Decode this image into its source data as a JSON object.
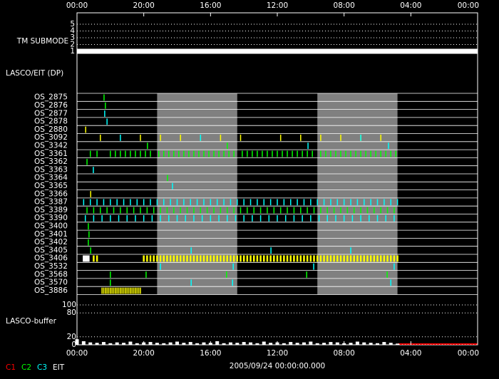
{
  "chart_data": {
    "type": "timeline",
    "title": "2005/09/24 00:00:00.000",
    "xlim": [
      0,
      120
    ],
    "xticks": [
      {
        "value": 0,
        "label": "00:00"
      },
      {
        "value": 20,
        "label": "20:00"
      },
      {
        "value": 40,
        "label": "16:00"
      },
      {
        "value": 60,
        "label": "12:00"
      },
      {
        "value": 80,
        "label": "08:00"
      },
      {
        "value": 100,
        "label": "04:00"
      },
      {
        "value": 120,
        "label": "00:00"
      }
    ],
    "tm_submode": {
      "label": "TM SUBMODE",
      "ylim": [
        1,
        5
      ],
      "yticks": [
        1,
        2,
        3,
        4,
        5
      ],
      "x": [
        0,
        120
      ],
      "values": [
        1,
        1
      ],
      "color": "#ffffff"
    },
    "panel_label": "LASCO/EIT (DP)",
    "shaded": [
      [
        24,
        48
      ],
      [
        72,
        96
      ]
    ],
    "rows": [
      {
        "name": "OS_2875",
        "marks": [
          {
            "color": "#00ff00",
            "x": [
              8.1
            ]
          }
        ]
      },
      {
        "name": "OS_2876",
        "marks": [
          {
            "color": "#00ff00",
            "x": [
              8.5
            ]
          }
        ]
      },
      {
        "name": "OS_2877",
        "marks": [
          {
            "color": "#00ffff",
            "x": [
              8.3
            ]
          }
        ]
      },
      {
        "name": "OS_2878",
        "marks": [
          {
            "color": "#00ffff",
            "x": [
              9
            ]
          }
        ]
      },
      {
        "name": "OS_2880",
        "marks": [
          {
            "color": "#ffff00",
            "x": [
              2.6
            ]
          }
        ]
      },
      {
        "name": "OS_3092",
        "marks": [
          {
            "color": "#ffff00",
            "x": [
              7,
              19,
              25,
              31,
              37,
              43,
              49,
              61,
              67,
              73,
              79,
              85,
              91
            ]
          },
          {
            "color": "#00ffff",
            "x": [
              13,
              37,
              85
            ]
          }
        ]
      },
      {
        "name": "OS_3342",
        "marks": [
          {
            "color": "#00ff00",
            "x": [
              21.1,
              45
            ]
          },
          {
            "color": "#00ffff",
            "x": [
              69.2,
              93.3
            ]
          }
        ]
      },
      {
        "name": "OS_3361",
        "marks": [
          {
            "color": "#00ff00",
            "x": [
              4,
              6,
              10,
              11.5,
              13,
              14.5,
              16,
              17.5,
              19,
              20.5,
              22,
              24.5,
              26,
              27.5,
              29,
              30.5,
              32,
              33.5,
              35,
              36.5,
              38,
              39.5,
              41,
              42.5,
              44,
              45.5,
              47,
              49.5,
              51,
              52.5,
              54,
              55.5,
              57,
              58.5,
              60,
              61.5,
              63,
              64.5,
              66,
              67.5,
              69,
              70.5,
              73,
              74.5,
              76,
              77.5,
              79,
              80.5,
              82,
              83.5,
              85,
              86.5,
              88,
              89.5,
              91,
              92.5,
              94,
              95.5
            ]
          }
        ]
      },
      {
        "name": "OS_3362",
        "marks": [
          {
            "color": "#00ff00",
            "x": [
              3
            ]
          }
        ]
      },
      {
        "name": "OS_3363",
        "marks": [
          {
            "color": "#00ffff",
            "x": [
              4.9
            ]
          }
        ]
      },
      {
        "name": "OS_3364",
        "marks": [
          {
            "color": "#00ff00",
            "x": [
              27.1
            ]
          }
        ]
      },
      {
        "name": "OS_3365",
        "marks": [
          {
            "color": "#00ffff",
            "x": [
              28.6
            ]
          }
        ]
      },
      {
        "name": "OS_3366",
        "marks": [
          {
            "color": "#ffff00",
            "x": [
              4.1
            ]
          }
        ]
      },
      {
        "name": "OS_3387",
        "marks": [
          {
            "color": "#00ffff",
            "x": [
              2,
              4,
              6,
              8,
              10,
              12,
              14,
              16,
              18,
              20,
              22,
              24,
              26,
              28,
              30,
              32,
              34,
              36,
              38,
              40,
              42,
              44,
              46,
              48,
              50,
              52,
              54,
              56,
              58,
              60,
              62,
              64,
              66,
              68,
              70,
              72,
              74,
              76,
              78,
              80,
              82,
              84,
              86,
              88,
              90,
              92,
              94,
              96
            ]
          }
        ]
      },
      {
        "name": "OS_3389",
        "marks": [
          {
            "color": "#00ff00",
            "x": [
              3,
              5,
              7,
              9,
              11,
              13,
              15,
              17,
              19,
              21,
              23,
              25,
              27,
              29,
              31,
              33,
              35,
              37,
              39,
              41,
              43,
              45,
              47,
              49,
              51,
              53,
              55,
              57,
              59,
              61,
              63,
              65,
              67,
              69,
              71,
              73,
              75,
              77,
              79,
              81,
              83,
              85,
              87,
              89,
              91,
              93,
              95
            ]
          }
        ]
      },
      {
        "name": "OS_3390",
        "marks": [
          {
            "color": "#00ffff",
            "x": [
              2.5,
              5,
              7.5,
              10,
              12.5,
              15,
              17.5,
              20,
              22.5,
              25,
              27.5,
              30,
              32.5,
              35,
              37.5,
              40,
              42.5,
              45,
              47.5,
              50,
              52.5,
              55,
              57.5,
              60,
              62.5,
              65,
              67.5,
              70,
              72.5,
              75,
              77.5,
              80,
              82.5,
              85,
              87.5,
              90,
              92.5,
              95
            ]
          }
        ]
      },
      {
        "name": "OS_3400",
        "marks": [
          {
            "color": "#00ff00",
            "x": [
              3.4
            ]
          }
        ]
      },
      {
        "name": "OS_3401",
        "marks": [
          {
            "color": "#00ff00",
            "x": [
              3.6
            ]
          }
        ]
      },
      {
        "name": "OS_3402",
        "marks": [
          {
            "color": "#00ff00",
            "x": [
              3.4
            ]
          }
        ]
      },
      {
        "name": "OS_3405",
        "marks": [
          {
            "color": "#00ff00",
            "x": [
              4.1
            ]
          },
          {
            "color": "#00ffff",
            "x": [
              34.2,
              58.1,
              82
            ]
          }
        ]
      },
      {
        "name": "OS_3406",
        "marks": [
          {
            "color": "#ffffff",
            "x": [
              2,
              2.5,
              3,
              3.5
            ]
          },
          {
            "color": "#ffff00",
            "x": [
              5,
              6,
              20,
              21,
              22,
              23,
              24,
              25,
              26,
              27,
              28,
              29,
              30,
              31,
              32,
              33,
              34,
              35,
              36,
              37,
              38,
              39,
              40,
              41,
              42,
              43,
              44,
              45,
              46,
              47,
              48,
              49,
              50,
              51,
              52,
              53,
              54,
              55,
              56,
              57,
              58,
              59,
              60,
              61,
              62,
              63,
              64,
              65,
              66,
              67,
              68,
              69,
              70,
              71,
              72,
              73,
              74,
              75,
              76,
              77,
              78,
              79,
              80,
              81,
              82,
              83,
              84,
              85,
              86,
              87,
              88,
              89,
              90,
              91,
              92,
              93,
              94,
              95,
              96
            ]
          }
        ]
      },
      {
        "name": "OS_3532",
        "marks": [
          {
            "color": "#00ffff",
            "x": [
              25,
              46.8,
              70.9,
              95
            ]
          }
        ]
      },
      {
        "name": "OS_3568",
        "marks": [
          {
            "color": "#00ff00",
            "x": [
              10,
              20.7,
              44.8,
              68.8,
              92.9
            ]
          }
        ]
      },
      {
        "name": "OS_3570",
        "marks": [
          {
            "color": "#00ff00",
            "x": [
              10
            ]
          },
          {
            "color": "#00ffff",
            "x": [
              34.2,
              46.6,
              94
            ]
          }
        ]
      },
      {
        "name": "OS_3886",
        "marks": [
          {
            "color": "#ffff00",
            "x": [
              7.5,
              8,
              8.5,
              9,
              9.5,
              10,
              10.5,
              11,
              11.5,
              12,
              12.5,
              13,
              13.5,
              14,
              14.5,
              15,
              15.5,
              16,
              16.5,
              17,
              17.5,
              18,
              18.5,
              19
            ]
          }
        ]
      }
    ],
    "buffer": {
      "label": "LASCO-buffer",
      "ylim": [
        0,
        100
      ],
      "yticks": [
        0,
        20,
        80,
        100
      ],
      "color": "#ffffff",
      "x": [
        0,
        2,
        4,
        6,
        8,
        10,
        12,
        14,
        16,
        18,
        20,
        22,
        24,
        26,
        28,
        30,
        32,
        34,
        36,
        38,
        40,
        42,
        44,
        46,
        48,
        50,
        52,
        54,
        56,
        58,
        60,
        62,
        64,
        66,
        68,
        70,
        72,
        74,
        76,
        78,
        80,
        82,
        84,
        86,
        88,
        90,
        92,
        94,
        96
      ],
      "values": [
        14,
        9,
        6,
        5,
        7,
        4,
        6,
        5,
        8,
        4,
        6,
        7,
        5,
        4,
        6,
        8,
        5,
        7,
        4,
        6,
        5,
        9,
        4,
        6,
        5,
        7,
        6,
        4,
        8,
        5,
        6,
        4,
        7,
        5,
        6,
        8,
        4,
        5,
        7,
        6,
        4,
        5,
        8,
        6,
        5,
        4,
        7,
        5,
        3
      ]
    },
    "legend": [
      {
        "name": "C1",
        "color": "#ff0000"
      },
      {
        "name": "C2",
        "color": "#00ff00"
      },
      {
        "name": "C3",
        "color": "#00ffff"
      },
      {
        "name": "EIT",
        "color": "#ffffff"
      }
    ]
  }
}
